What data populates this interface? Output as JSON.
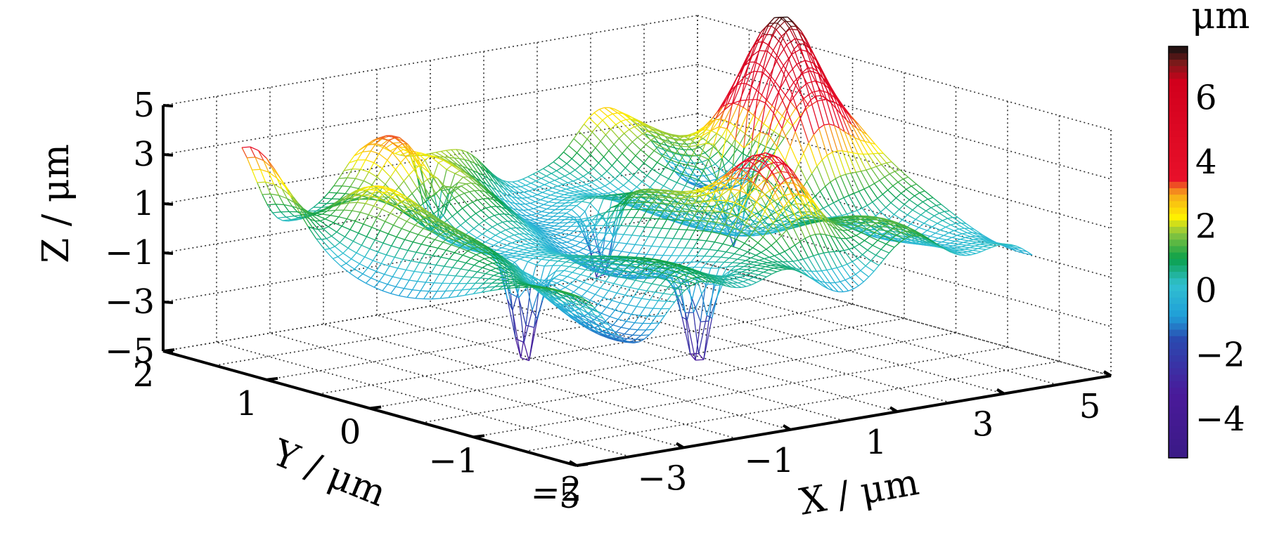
{
  "chart_data": {
    "type": "surface",
    "style": "3d-wireframe-mesh",
    "xlabel": "X / μm",
    "ylabel": "Y / μm",
    "zlabel": "Z / μm",
    "xlim": [
      -5,
      5
    ],
    "ylim": [
      -2,
      2
    ],
    "zlim": [
      -5,
      5
    ],
    "x_ticks": [
      "−5",
      "−3",
      "−1",
      "1",
      "3",
      "5"
    ],
    "y_ticks": [
      "2",
      "1",
      "0",
      "−1",
      "−2"
    ],
    "z_ticks": [
      "5",
      "3",
      "1",
      "−1",
      "−3",
      "−5"
    ],
    "grid": true,
    "surface_peaks": [
      {
        "x": 3.3,
        "y": 0.3,
        "z": 7.2
      },
      {
        "x": 0.9,
        "y": -0.9,
        "z": 5.0
      },
      {
        "x": -4.4,
        "y": 1.5,
        "z": 3.6
      },
      {
        "x": -2.0,
        "y": 1.4,
        "z": 3.8
      },
      {
        "x": 0.0,
        "y": 1.8,
        "z": 3.0
      },
      {
        "x": 4.0,
        "y": 0.5,
        "z": 3.2
      },
      {
        "x": 2.3,
        "y": 1.8,
        "z": 2.8
      },
      {
        "x": -3.2,
        "y": 0.9,
        "z": 2.2
      }
    ],
    "surface_pits": [
      {
        "x": -2.5,
        "y": -0.2,
        "z": -4.2
      },
      {
        "x": -0.8,
        "y": -1.0,
        "z": -4.0
      },
      {
        "x": 2.6,
        "y": 0.4,
        "z": -3.8
      },
      {
        "x": 0.5,
        "y": 0.6,
        "z": -3.4
      },
      {
        "x": -1.5,
        "y": 1.2,
        "z": -3.2
      }
    ],
    "colorbar": {
      "label": "μm",
      "range": [
        -5.2,
        7.6
      ],
      "ticks": [
        "6",
        "4",
        "2",
        "0",
        "−2",
        "−4"
      ],
      "tick_values": [
        6,
        4,
        2,
        0,
        -2,
        -4
      ],
      "colors": [
        {
          "value": -5.2,
          "color": "#3a1a86"
        },
        {
          "value": -3.2,
          "color": "#4a1a9a"
        },
        {
          "value": -1.5,
          "color": "#2a4ab0"
        },
        {
          "value": -0.8,
          "color": "#1f9ed8"
        },
        {
          "value": 0.2,
          "color": "#31c0d0"
        },
        {
          "value": 1.0,
          "color": "#0aa04a"
        },
        {
          "value": 1.8,
          "color": "#8cc63f"
        },
        {
          "value": 2.3,
          "color": "#fff000"
        },
        {
          "value": 3.0,
          "color": "#f7a81b"
        },
        {
          "value": 3.5,
          "color": "#e8102a"
        },
        {
          "value": 6.5,
          "color": "#d1001c"
        },
        {
          "value": 7.1,
          "color": "#7a1a1a"
        },
        {
          "value": 7.6,
          "color": "#111111"
        }
      ]
    }
  }
}
